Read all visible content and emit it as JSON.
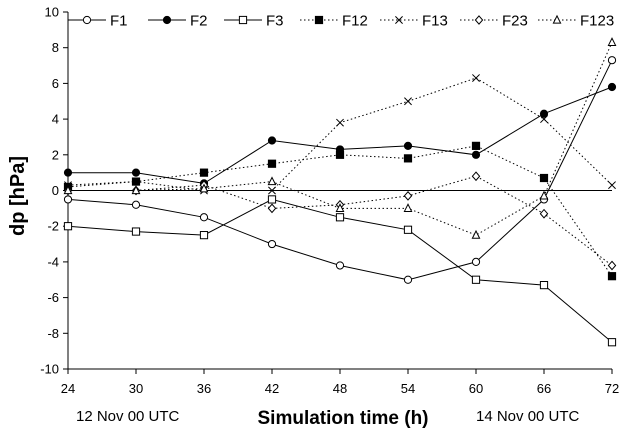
{
  "chart_data": {
    "type": "line",
    "title": "",
    "xlabel": "Simulation time (h)",
    "ylabel": "dp [hPa]",
    "x": [
      24,
      30,
      36,
      42,
      48,
      54,
      60,
      66,
      72
    ],
    "xlim": [
      24,
      72
    ],
    "ylim": [
      -10,
      10
    ],
    "xticks": [
      "24",
      "30",
      "36",
      "42",
      "48",
      "54",
      "60",
      "66",
      "72"
    ],
    "yticks": [
      "10",
      "8",
      "6",
      "4",
      "2",
      "0",
      "-2",
      "-4",
      "-6",
      "-8",
      "-10"
    ],
    "grid": false,
    "legend_position": "top",
    "annotations": {
      "left": "12 Nov 00 UTC",
      "right": "14 Nov 00 UTC"
    },
    "series": [
      {
        "name": "F1",
        "marker": "circle-open",
        "line": "solid",
        "values": [
          -0.5,
          -0.8,
          -1.5,
          -3.0,
          -4.2,
          -5.0,
          -4.0,
          -0.5,
          7.3
        ]
      },
      {
        "name": "F2",
        "marker": "circle-filled",
        "line": "solid",
        "values": [
          1.0,
          1.0,
          0.4,
          2.8,
          2.3,
          2.5,
          2.0,
          4.3,
          5.8
        ]
      },
      {
        "name": "F3",
        "marker": "square-open",
        "line": "solid",
        "values": [
          -2.0,
          -2.3,
          -2.5,
          -0.5,
          -1.5,
          -2.2,
          -5.0,
          -5.3,
          -8.5
        ]
      },
      {
        "name": "F12",
        "marker": "square-filled",
        "line": "dotted",
        "values": [
          0.2,
          0.5,
          1.0,
          1.5,
          2.0,
          1.8,
          2.5,
          0.7,
          -4.8
        ]
      },
      {
        "name": "F13",
        "marker": "x",
        "line": "dotted",
        "values": [
          0.3,
          0.5,
          0.0,
          0.0,
          3.8,
          5.0,
          6.3,
          4.0,
          0.3
        ]
      },
      {
        "name": "F23",
        "marker": "diamond-open",
        "line": "dotted",
        "values": [
          0.0,
          0.0,
          0.3,
          -1.0,
          -0.8,
          -0.3,
          0.8,
          -1.3,
          -4.2
        ]
      },
      {
        "name": "F123",
        "marker": "triangle-open",
        "line": "dotted",
        "values": [
          0.0,
          0.0,
          0.1,
          0.5,
          -1.0,
          -1.0,
          -2.5,
          -0.3,
          8.3
        ]
      }
    ]
  }
}
